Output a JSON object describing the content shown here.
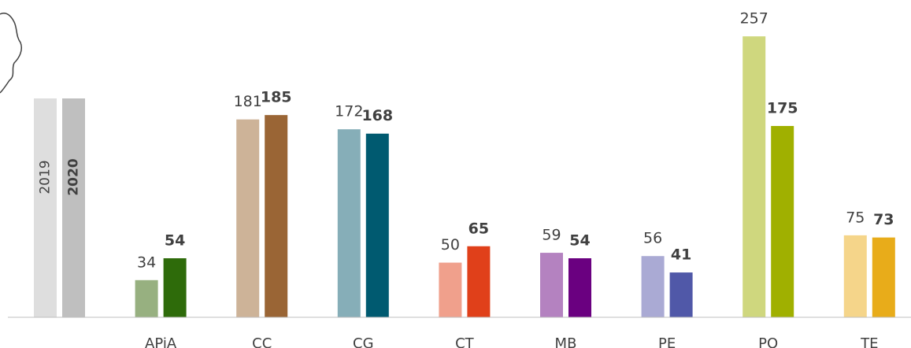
{
  "chart_data": {
    "type": "bar",
    "categories": [
      "APiA",
      "CC",
      "CG",
      "CT",
      "MB",
      "PE",
      "PO",
      "TE"
    ],
    "series": [
      {
        "name": "2019",
        "color": "#dedede",
        "colors": [
          "#97b080",
          "#cdb398",
          "#86aeb8",
          "#f0a08c",
          "#b482c0",
          "#aaaad4",
          "#cfd77e",
          "#f5d58a"
        ],
        "values": [
          34,
          181,
          172,
          50,
          59,
          56,
          257,
          75
        ]
      },
      {
        "name": "2020",
        "color": "#bfbfbf",
        "colors": [
          "#2e6b0a",
          "#9a6535",
          "#005a70",
          "#e0401a",
          "#6a0080",
          "#5058a8",
          "#a0b000",
          "#e8ac1a"
        ],
        "values": [
          54,
          185,
          168,
          65,
          54,
          41,
          175,
          73
        ]
      }
    ],
    "ylim": [
      0,
      260
    ]
  }
}
